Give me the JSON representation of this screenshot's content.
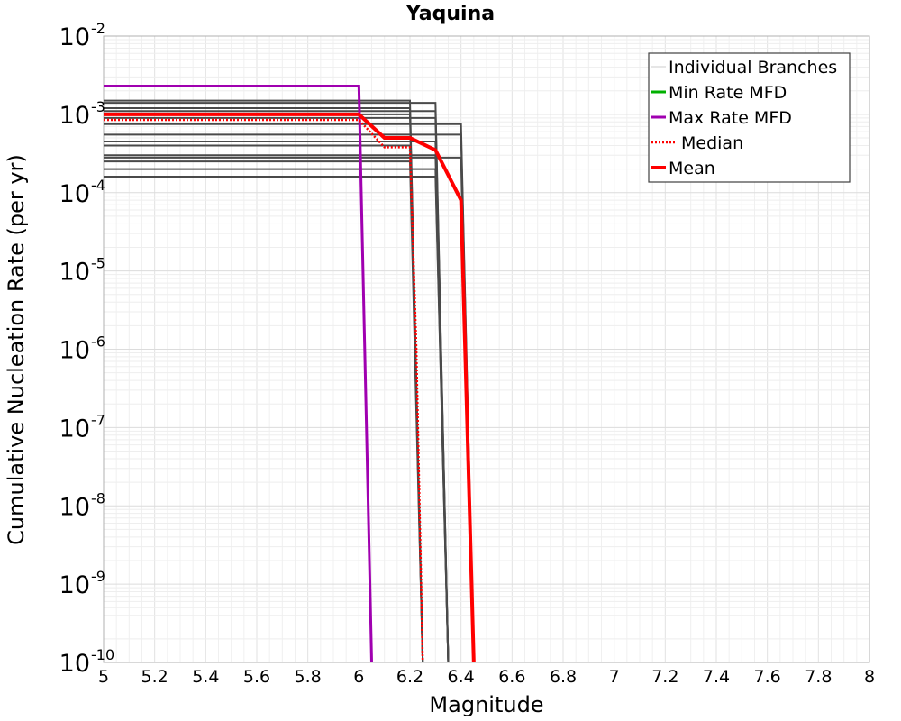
{
  "chart_data": {
    "type": "line",
    "title": "Yaquina",
    "xlabel": "Magnitude",
    "ylabel": "Cumulative Nucleation Rate (per yr)",
    "xlim": [
      5,
      8
    ],
    "ylim": [
      1e-10,
      0.01
    ],
    "yscale": "log",
    "grid": true,
    "legend_position": "top-right",
    "x_ticks": [
      "5",
      "5.2",
      "5.4",
      "5.6",
      "5.8",
      "6",
      "6.2",
      "6.4",
      "6.6",
      "6.8",
      "7",
      "7.2",
      "7.4",
      "7.6",
      "7.8",
      "8"
    ],
    "y_ticks": [
      {
        "base": "10",
        "exp": "-2"
      },
      {
        "base": "10",
        "exp": "-3"
      },
      {
        "base": "10",
        "exp": "-4"
      },
      {
        "base": "10",
        "exp": "-5"
      },
      {
        "base": "10",
        "exp": "-6"
      },
      {
        "base": "10",
        "exp": "-7"
      },
      {
        "base": "10",
        "exp": "-8"
      },
      {
        "base": "10",
        "exp": "-9"
      },
      {
        "base": "10",
        "exp": "-10"
      }
    ],
    "legend": [
      {
        "label": "Individual Branches",
        "color": "#cccccc",
        "style": "thin"
      },
      {
        "label": "Min Rate MFD",
        "color": "#00b000",
        "style": "solid"
      },
      {
        "label": "Max Rate MFD",
        "color": "#a000b0",
        "style": "solid"
      },
      {
        "label": "Median",
        "color": "#ff0000",
        "style": "dotted"
      },
      {
        "label": "Mean",
        "color": "#ff0000",
        "style": "thick"
      }
    ],
    "branches": [
      {
        "level": 0.0015,
        "mmax": 6.2,
        "mend": 6.25
      },
      {
        "level": 0.0012,
        "mmax": 6.2,
        "mend": 6.25
      },
      {
        "level": 0.001,
        "mmax": 6.2,
        "mend": 6.25
      },
      {
        "level": 0.0014,
        "mmax": 6.3,
        "mend": 6.35
      },
      {
        "level": 0.0011,
        "mmax": 6.3,
        "mend": 6.35
      },
      {
        "level": 0.0009,
        "mmax": 6.3,
        "mend": 6.35
      },
      {
        "level": 0.00075,
        "mmax": 6.4,
        "mend": 6.45
      },
      {
        "level": 0.00055,
        "mmax": 6.4,
        "mend": 6.45
      },
      {
        "level": 0.00045,
        "mmax": 6.3,
        "mend": 6.35
      },
      {
        "level": 0.0004,
        "mmax": 6.2,
        "mend": 6.25
      },
      {
        "level": 0.0003,
        "mmax": 6.3,
        "mend": 6.35
      },
      {
        "level": 0.00028,
        "mmax": 6.4,
        "mend": 6.45
      },
      {
        "level": 0.00025,
        "mmax": 6.2,
        "mend": 6.25
      },
      {
        "level": 0.0002,
        "mmax": 6.3,
        "mend": 6.35
      },
      {
        "level": 0.00016,
        "mmax": 6.3,
        "mend": 6.35
      }
    ],
    "series": [
      {
        "name": "Max Rate MFD",
        "color": "#a000b0",
        "x": [
          5,
          6.0,
          6.05
        ],
        "y": [
          0.0023,
          0.0023,
          1e-10
        ]
      },
      {
        "name": "Median",
        "color": "#ff0000",
        "x": [
          5,
          6.0,
          6.1,
          6.2,
          6.225,
          6.25
        ],
        "y": [
          0.00085,
          0.00085,
          0.00038,
          0.00038,
          1e-06,
          1e-10
        ]
      },
      {
        "name": "Mean",
        "color": "#ff0000",
        "x": [
          5,
          6.0,
          6.1,
          6.2,
          6.3,
          6.4,
          6.45
        ],
        "y": [
          0.001,
          0.001,
          0.0005,
          0.0005,
          0.00035,
          8e-05,
          1e-10
        ]
      }
    ]
  }
}
